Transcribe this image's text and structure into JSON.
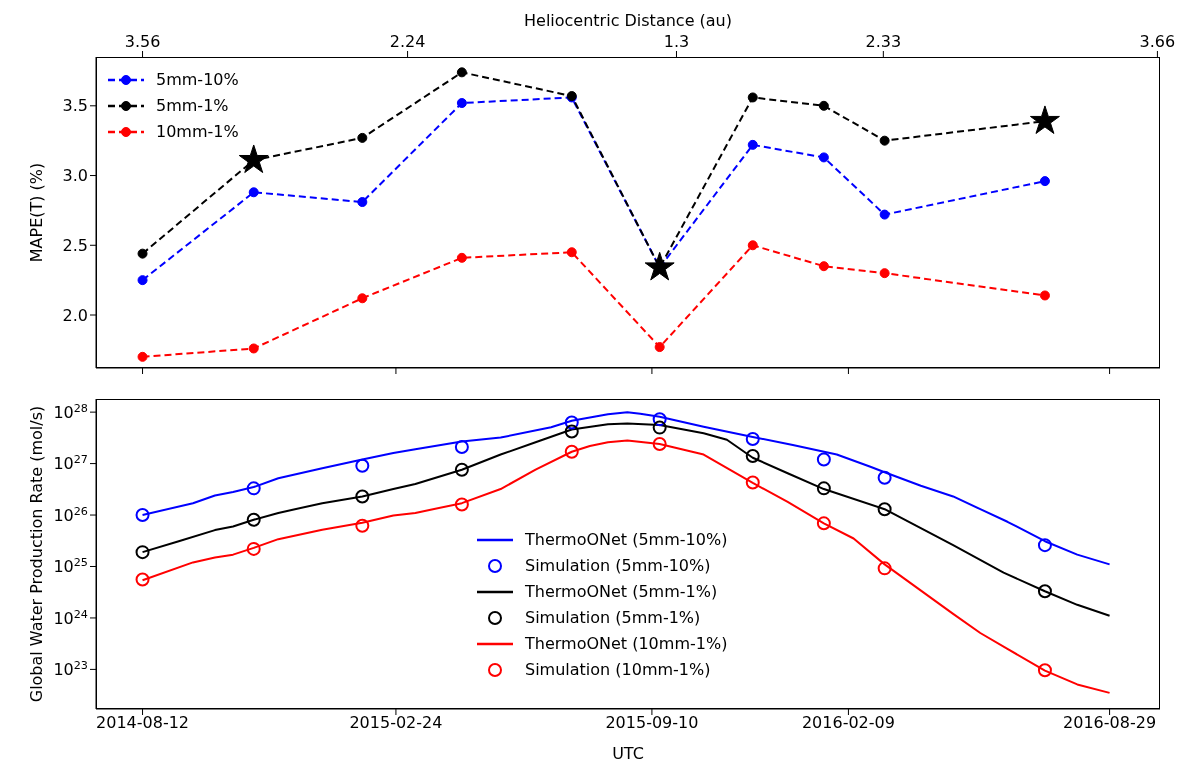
{
  "chart_data": [
    {
      "type": "line",
      "ylabel": "MAPE(T)  (%)",
      "x2label": "Heliocentric Distance (au)",
      "x": [
        "2014-08-12",
        "2014-11-06",
        "2015-01-29",
        "2015-04-16",
        "2015-07-10",
        "2015-09-16",
        "2015-11-27",
        "2016-01-21",
        "2016-03-08",
        "2016-07-10"
      ],
      "series": [
        {
          "name": "5mm-10%",
          "color": "#0000ff",
          "values": [
            2.25,
            2.88,
            2.81,
            3.52,
            3.56,
            2.34,
            3.22,
            3.13,
            2.72,
            2.96
          ]
        },
        {
          "name": "5mm-1%",
          "color": "#000000",
          "values": [
            2.44,
            3.11,
            3.27,
            3.74,
            3.57,
            2.34,
            3.56,
            3.5,
            3.25,
            3.39
          ]
        },
        {
          "name": "10mm-1%",
          "color": "#ff0000",
          "values": [
            1.7,
            1.76,
            2.12,
            2.41,
            2.45,
            1.77,
            2.5,
            2.35,
            2.3,
            2.14
          ]
        },
        {
          "type": "scatter",
          "marker": "star",
          "color": "#000000",
          "x": [
            "2014-11-06",
            "2015-09-16",
            "2016-07-10"
          ],
          "values": [
            3.11,
            2.34,
            3.39
          ]
        }
      ],
      "xlim": [
        "2014-07-07",
        "2016-10-07"
      ],
      "xticks": [
        "2014-08-12",
        "2015-02-24",
        "2015-09-10",
        "2016-02-09",
        "2016-08-29"
      ],
      "tick_labels": "y",
      "x2lim": [
        "2014-07-07",
        "2016-10-07"
      ],
      "x2ticks": [
        {
          "value": "2014-08-12",
          "label": "3.56"
        },
        {
          "value": "2015-03-05",
          "label": "2.24"
        },
        {
          "value": "2015-09-29",
          "label": "1.3"
        },
        {
          "value": "2016-03-07",
          "label": "2.33"
        },
        {
          "value": "2016-10-05",
          "label": "3.66"
        }
      ],
      "ylim": [
        1.62,
        3.85
      ],
      "yticks": [
        {
          "value": 2,
          "label": "2.0"
        },
        2.5,
        {
          "value": 3,
          "label": "3.0"
        },
        3.5
      ],
      "grid": false,
      "legend": "top left",
      "marker": "circle",
      "line_style": "dashed"
    },
    {
      "type": "line",
      "xlabel": "UTC",
      "ylabel": "Global Water Production Rate (mol/s)",
      "log": true,
      "series": [
        {
          "name": "ThermoONet (5mm-10%)",
          "color": "#0000ff",
          "x": [
            "2014-08-12",
            "2014-09-20",
            "2014-10-07",
            "2014-10-21",
            "2014-11-06",
            "2014-11-25",
            "2014-12-29",
            "2015-01-29",
            "2015-02-22",
            "2015-03-11",
            "2015-04-16",
            "2015-05-16",
            "2015-06-24",
            "2015-07-10",
            "2015-08-07",
            "2015-08-22",
            "2015-09-01",
            "2015-09-16",
            "2015-10-20",
            "2015-11-27",
            "2015-12-28",
            "2016-01-31",
            "2016-02-26",
            "2016-03-08",
            "2016-04-05",
            "2016-04-30",
            "2016-05-21",
            "2016-06-11",
            "2016-07-10",
            "2016-08-04",
            "2016-08-29"
          ],
          "values": [
            1e+26,
            1.7e+26,
            2.4e+26,
            2.8e+26,
            3.5e+26,
            5.2e+26,
            8.1e+26,
            1.2e+27,
            1.6e+27,
            1.9e+27,
            2.7e+27,
            3.2e+27,
            5.1e+27,
            6.8e+27,
            9.1e+27,
            1e+28,
            9.3e+27,
            8.1e+27,
            5.2e+27,
            3.3e+27,
            2.3e+27,
            1.5e+27,
            8.7e+26,
            6.8e+26,
            3.7e+26,
            2.3e+26,
            1.3e+26,
            7.4e+25,
            3.1e+25,
            1.7e+25,
            1.1e+25
          ]
        },
        {
          "type": "scatter",
          "marker": "circle",
          "name": "Simulation (5mm-10%)",
          "color": "#0000ff",
          "x": [
            "2014-08-12",
            "2014-11-06",
            "2015-01-29",
            "2015-04-16",
            "2015-07-10",
            "2015-09-16",
            "2015-11-27",
            "2016-01-21",
            "2016-03-08",
            "2016-07-10"
          ],
          "values": [
            1e+26,
            3.3e+26,
            9.1e+26,
            2.1e+27,
            6.3e+27,
            7.3e+27,
            3e+27,
            1.2e+27,
            5.3e+26,
            2.6e+25
          ]
        },
        {
          "name": "ThermoONet (5mm-1%)",
          "color": "#000000",
          "x": [
            "2014-08-12",
            "2014-09-09",
            "2014-10-07",
            "2014-10-21",
            "2014-11-06",
            "2014-11-25",
            "2014-12-29",
            "2015-01-29",
            "2015-02-22",
            "2015-03-11",
            "2015-04-16",
            "2015-05-16",
            "2015-06-12",
            "2015-07-10",
            "2015-08-07",
            "2015-08-22",
            "2015-09-16",
            "2015-10-20",
            "2015-11-07",
            "2015-11-27",
            "2015-12-24",
            "2016-01-21",
            "2016-03-08",
            "2016-04-30",
            "2016-06-08",
            "2016-07-10",
            "2016-08-04",
            "2016-08-29"
          ],
          "values": [
            1.9e+25,
            3.1e+25,
            5.1e+25,
            6e+25,
            8.1e+25,
            1.1e+26,
            1.7e+26,
            2.3e+26,
            3.2e+26,
            4e+26,
            7.6e+26,
            1.5e+27,
            2.6e+27,
            4.6e+27,
            5.8e+27,
            6e+27,
            5.6e+27,
            3.9e+27,
            2.9e+27,
            1.3e+27,
            6.5e+26,
            3.2e+26,
            1.3e+26,
            2.6e+25,
            7.6e+24,
            3.3e+24,
            1.8e+24,
            1.1e+24
          ]
        },
        {
          "type": "scatter",
          "marker": "circle",
          "name": "Simulation (5mm-1%)",
          "color": "#000000",
          "x": [
            "2014-08-12",
            "2014-11-06",
            "2015-01-29",
            "2015-04-16",
            "2015-07-10",
            "2015-09-16",
            "2015-11-27",
            "2016-01-21",
            "2016-03-08",
            "2016-07-10"
          ],
          "values": [
            1.9e+25,
            8.1e+25,
            2.3e+26,
            7.6e+26,
            4.2e+27,
            5e+27,
            1.4e+27,
            3.3e+26,
            1.3e+26,
            3.3e+24
          ]
        },
        {
          "name": "ThermoONet (10mm-1%)",
          "color": "#ff0000",
          "x": [
            "2014-08-12",
            "2014-09-20",
            "2014-10-07",
            "2014-10-21",
            "2014-11-06",
            "2014-11-25",
            "2014-12-29",
            "2015-01-29",
            "2015-02-22",
            "2015-03-11",
            "2015-04-16",
            "2015-05-16",
            "2015-06-12",
            "2015-07-10",
            "2015-07-24",
            "2015-08-07",
            "2015-08-22",
            "2015-09-16",
            "2015-10-20",
            "2015-11-27",
            "2015-12-24",
            "2016-01-21",
            "2016-02-13",
            "2016-03-08",
            "2016-04-30",
            "2016-05-21",
            "2016-06-11",
            "2016-07-10",
            "2016-08-04",
            "2016-08-29"
          ],
          "values": [
            5.4e+24,
            1.2e+25,
            1.5e+25,
            1.7e+25,
            2.3e+25,
            3.4e+25,
            5.2e+25,
            7.1e+25,
            9.8e+25,
            1.1e+26,
            1.7e+26,
            3.2e+26,
            7.6e+26,
            1.7e+27,
            2.2e+27,
            2.6e+27,
            2.8e+27,
            2.4e+27,
            1.5e+27,
            4.2e+26,
            1.8e+26,
            6.9e+25,
            3.5e+25,
            1.1e+25,
            1.2e+24,
            5.1e+23,
            2.5e+23,
            9.5e+22,
            5.1e+22,
            3.5e+22
          ]
        },
        {
          "type": "scatter",
          "marker": "circle",
          "name": "Simulation (10mm-1%)",
          "color": "#ff0000",
          "x": [
            "2014-08-12",
            "2014-11-06",
            "2015-01-29",
            "2015-04-16",
            "2015-07-10",
            "2015-09-16",
            "2015-11-27",
            "2016-01-21",
            "2016-03-08",
            "2016-07-10"
          ],
          "values": [
            5.6e+24,
            2.2e+25,
            6.2e+25,
            1.6e+26,
            1.7e+27,
            2.4e+27,
            4.3e+26,
            6.9e+25,
            9.2e+24,
            9.6e+22
          ]
        }
      ],
      "xlim": [
        "2014-07-07",
        "2016-10-07"
      ],
      "xticks": [
        "2014-08-12",
        "2015-02-24",
        "2015-09-10",
        "2016-02-09",
        "2016-08-29"
      ],
      "ylim": [
        1.7e+22,
        1.8e+28
      ],
      "yticks": [
        {
          "value": 1e+23,
          "label": "10$^{23}$"
        },
        {
          "value": 1e+24,
          "label": "10$^{24}$"
        },
        {
          "value": 1e+25,
          "label": "10$^{25}$"
        },
        {
          "value": 1e+26,
          "label": "10$^{26}$"
        },
        {
          "value": 1e+27,
          "label": "10$^{27}$"
        },
        {
          "value": 1e+28,
          "label": "10$^{28}$"
        }
      ],
      "grid": false,
      "legend": "bottom",
      "marker": "none",
      "line_style": "solid"
    }
  ]
}
